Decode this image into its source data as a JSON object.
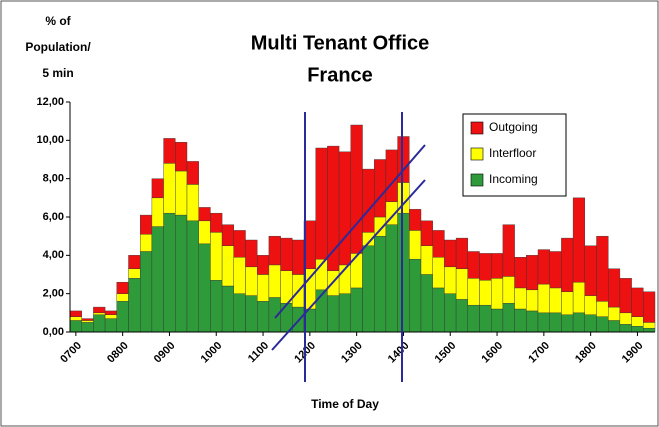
{
  "chart_data": {
    "type": "stacked_bar",
    "title": "Multi Tenant Office",
    "subtitle": "France",
    "ylabel": [
      "% of",
      "Population/",
      "5 min"
    ],
    "xlabel": "Time of Day",
    "categories": [
      "0700",
      null,
      null,
      null,
      "0800",
      null,
      null,
      null,
      "0900",
      null,
      null,
      null,
      "1000",
      null,
      null,
      null,
      "1100",
      null,
      null,
      null,
      "1200",
      null,
      null,
      null,
      "1300",
      null,
      null,
      null,
      "1400",
      null,
      null,
      null,
      "1500",
      null,
      null,
      null,
      "1600",
      null,
      null,
      null,
      "1700",
      null,
      null,
      null,
      "1800",
      null,
      null,
      null,
      "1900",
      null
    ],
    "series": [
      {
        "name": "Incoming",
        "color": "#2f9a3a",
        "values": [
          0.6,
          0.5,
          0.9,
          0.7,
          1.6,
          2.8,
          4.2,
          5.5,
          6.2,
          6.1,
          5.8,
          4.6,
          2.7,
          2.4,
          2.0,
          1.9,
          1.6,
          1.8,
          1.5,
          1.3,
          1.2,
          2.2,
          1.9,
          2.0,
          2.3,
          4.5,
          5.0,
          5.6,
          6.2,
          3.8,
          3.0,
          2.3,
          2.0,
          1.7,
          1.4,
          1.4,
          1.2,
          1.5,
          1.2,
          1.1,
          1.0,
          1.0,
          0.9,
          1.0,
          0.9,
          0.8,
          0.6,
          0.4,
          0.3,
          0.2
        ]
      },
      {
        "name": "Interfloor",
        "color": "#ffff00",
        "values": [
          0.2,
          0.1,
          0.1,
          0.2,
          0.4,
          0.5,
          0.9,
          1.5,
          2.6,
          2.3,
          1.9,
          1.2,
          2.5,
          2.1,
          1.9,
          1.5,
          1.4,
          1.7,
          1.7,
          1.7,
          2.1,
          1.6,
          1.3,
          1.5,
          1.8,
          0.7,
          1.0,
          1.2,
          1.6,
          1.5,
          1.5,
          1.6,
          1.4,
          1.6,
          1.4,
          1.3,
          1.6,
          1.4,
          1.1,
          1.1,
          1.5,
          1.3,
          1.2,
          1.6,
          1.0,
          0.8,
          0.7,
          0.6,
          0.5,
          0.3
        ]
      },
      {
        "name": "Outgoing",
        "color": "#ee1111",
        "values": [
          0.3,
          0.1,
          0.3,
          0.2,
          0.6,
          0.7,
          1.0,
          1.0,
          1.3,
          1.5,
          1.2,
          0.7,
          1.0,
          1.1,
          1.4,
          1.4,
          1.0,
          1.5,
          1.7,
          1.8,
          2.5,
          5.8,
          6.5,
          5.9,
          6.7,
          3.3,
          3.0,
          2.7,
          2.4,
          1.1,
          1.3,
          1.4,
          1.4,
          1.6,
          1.4,
          1.4,
          1.3,
          2.7,
          1.6,
          1.8,
          1.8,
          1.9,
          2.8,
          4.4,
          2.6,
          3.4,
          2.0,
          1.8,
          1.5,
          1.6
        ]
      }
    ],
    "ylim": [
      0,
      12
    ],
    "yticks": [
      {
        "value": 0,
        "label": "0,00"
      },
      {
        "value": 2,
        "label": "2,00"
      },
      {
        "value": 4,
        "label": "4,00"
      },
      {
        "value": 6,
        "label": "6,00"
      },
      {
        "value": 8,
        "label": "8,00"
      },
      {
        "value": 10,
        "label": "10,00"
      },
      {
        "value": 12,
        "label": "12,00"
      }
    ],
    "legend": "upper right",
    "grid": false
  }
}
